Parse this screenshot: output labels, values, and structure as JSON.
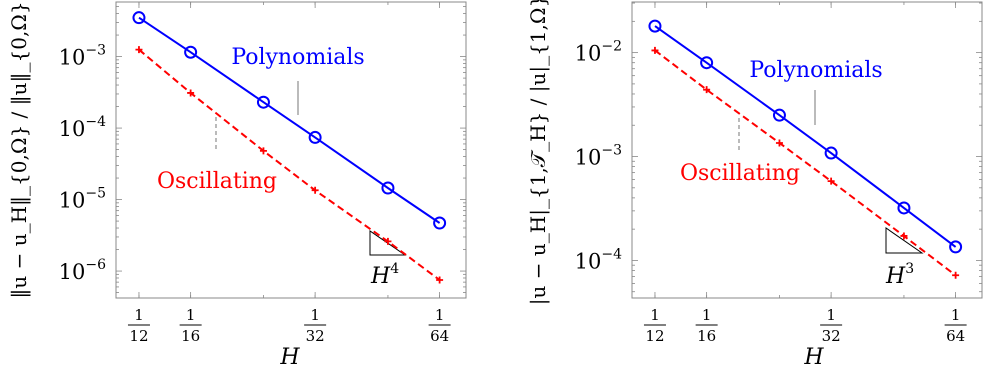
{
  "chart_data": [
    {
      "type": "line",
      "xscale": "log",
      "yscale": "log",
      "xlabel": "H",
      "ylabel": "‖u − u_H‖_{0,Ω} / ‖u‖_{0,Ω}",
      "x": [
        0.0833333,
        0.0625,
        0.0416667,
        0.03125,
        0.0208333,
        0.015625
      ],
      "xticks": [
        {
          "value": 0.0833333,
          "num": "1",
          "den": "12"
        },
        {
          "value": 0.0625,
          "num": "1",
          "den": "16"
        },
        {
          "value": 0.03125,
          "num": "1",
          "den": "32"
        },
        {
          "value": 0.015625,
          "num": "1",
          "den": "64"
        }
      ],
      "yticks": [
        {
          "value": 0.001,
          "base": "10",
          "exp": "−3"
        },
        {
          "value": 0.0001,
          "base": "10",
          "exp": "−4"
        },
        {
          "value": 1e-05,
          "base": "10",
          "exp": "−5"
        },
        {
          "value": 1e-06,
          "base": "10",
          "exp": "−6"
        }
      ],
      "xlim": [
        0.0947,
        0.01349
      ],
      "ylim": [
        4.2e-07,
        0.0058
      ],
      "series": [
        {
          "name": "Polynomials",
          "color": "#0000ff",
          "style": "solid",
          "marker": "circle",
          "values": [
            0.0035,
            0.00115,
            0.00023,
            7.4e-05,
            1.45e-05,
            4.7e-06
          ]
        },
        {
          "name": "Oscillating",
          "color": "#ff0000",
          "style": "dashed",
          "marker": "plus",
          "values": [
            0.00125,
            0.00031,
            4.8e-05,
            1.35e-05,
            2.6e-06,
            7.5e-07
          ]
        }
      ],
      "slope_label": {
        "base": "H",
        "exp": "4"
      },
      "grid": false
    },
    {
      "type": "line",
      "xscale": "log",
      "yscale": "log",
      "xlabel": "H",
      "ylabel": "|u − u_H|_{1,𝒯_H} / |u|_{1,Ω}",
      "x": [
        0.0833333,
        0.0625,
        0.0416667,
        0.03125,
        0.0208333,
        0.015625
      ],
      "xticks": [
        {
          "value": 0.0833333,
          "num": "1",
          "den": "12"
        },
        {
          "value": 0.0625,
          "num": "1",
          "den": "16"
        },
        {
          "value": 0.03125,
          "num": "1",
          "den": "32"
        },
        {
          "value": 0.015625,
          "num": "1",
          "den": "64"
        }
      ],
      "yticks": [
        {
          "value": 0.01,
          "base": "10",
          "exp": "−2"
        },
        {
          "value": 0.001,
          "base": "10",
          "exp": "−3"
        },
        {
          "value": 0.0001,
          "base": "10",
          "exp": "−4"
        }
      ],
      "xlim": [
        0.0947,
        0.01349
      ],
      "ylim": [
        4.35e-05,
        0.0307
      ],
      "series": [
        {
          "name": "Polynomials",
          "color": "#0000ff",
          "style": "solid",
          "marker": "circle",
          "values": [
            0.018,
            0.008,
            0.0025,
            0.00108,
            0.00032,
            0.000135
          ]
        },
        {
          "name": "Oscillating",
          "color": "#ff0000",
          "style": "dashed",
          "marker": "plus",
          "values": [
            0.0105,
            0.0044,
            0.00135,
            0.00058,
            0.000172,
            7.2e-05
          ]
        }
      ],
      "slope_label": {
        "base": "H",
        "exp": "3"
      },
      "grid": false
    }
  ]
}
